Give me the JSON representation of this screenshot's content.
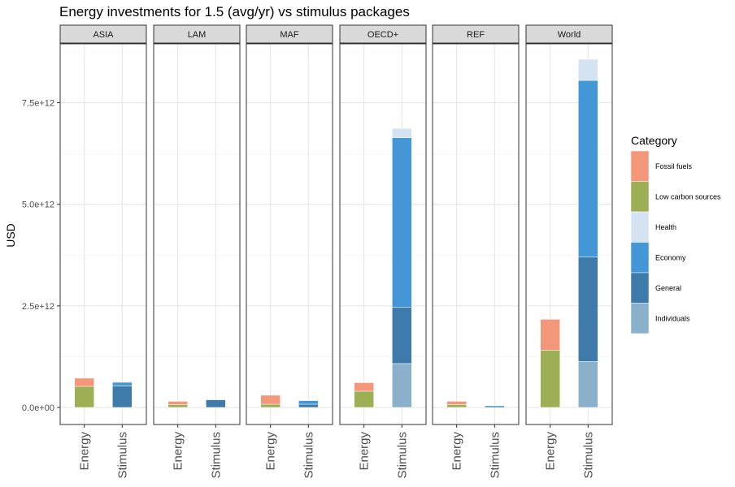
{
  "chart_data": {
    "type": "bar",
    "stacked": true,
    "title": "Energy investments for 1.5 (avg/yr) vs stimulus packages",
    "xlabel": "",
    "ylabel": "USD",
    "ylim": [
      -420000000000.0,
      8950000000000.0
    ],
    "yticks": [
      0,
      2500000000000.0,
      5000000000000.0,
      7500000000000.0
    ],
    "ytick_labels": [
      "0.0e+00",
      "2.5e+12",
      "5.0e+12",
      "7.5e+12"
    ],
    "grid": true,
    "legend_position": "right",
    "legend_title": "Category",
    "categories": [
      "Energy",
      "Stimulus"
    ],
    "series_meta": [
      {
        "name": "Fossil fuels",
        "color": "#F4967A"
      },
      {
        "name": "Low carbon sources",
        "color": "#9DAF55"
      },
      {
        "name": "Health",
        "color": "#D3E3F2"
      },
      {
        "name": "Economy",
        "color": "#4397D6"
      },
      {
        "name": "General",
        "color": "#3E7BAA"
      },
      {
        "name": "Individuals",
        "color": "#8BB0CC"
      }
    ],
    "stack_order": [
      "Individuals",
      "General",
      "Economy",
      "Health",
      "Low carbon sources",
      "Fossil fuels"
    ],
    "panels": [
      {
        "name": "ASIA",
        "bars": {
          "Energy": {
            "Low carbon sources": 520000000000.0,
            "Fossil fuels": 200000000000.0
          },
          "Stimulus": {
            "Individuals": 0,
            "General": 530000000000.0,
            "Economy": 90000000000.0,
            "Health": 20000000000.0
          }
        }
      },
      {
        "name": "LAM",
        "bars": {
          "Energy": {
            "Low carbon sources": 70000000000.0,
            "Fossil fuels": 80000000000.0
          },
          "Stimulus": {
            "Individuals": 0,
            "General": 190000000000.0,
            "Economy": 10000000000.0,
            "Health": 0
          }
        }
      },
      {
        "name": "MAF",
        "bars": {
          "Energy": {
            "Low carbon sources": 80000000000.0,
            "Fossil fuels": 220000000000.0
          },
          "Stimulus": {
            "Individuals": 0,
            "General": 80000000000.0,
            "Economy": 90000000000.0,
            "Health": 10000000000.0
          }
        }
      },
      {
        "name": "OECD+",
        "bars": {
          "Energy": {
            "Low carbon sources": 400000000000.0,
            "Fossil fuels": 210000000000.0
          },
          "Stimulus": {
            "Individuals": 1080000000000.0,
            "General": 1390000000000.0,
            "Economy": 4170000000000.0,
            "Health": 230000000000.0
          }
        }
      },
      {
        "name": "REF",
        "bars": {
          "Energy": {
            "Low carbon sources": 70000000000.0,
            "Fossil fuels": 80000000000.0
          },
          "Stimulus": {
            "Individuals": 0,
            "General": 40000000000.0,
            "Economy": 10000000000.0,
            "Health": 0
          }
        }
      },
      {
        "name": "World",
        "bars": {
          "Energy": {
            "Low carbon sources": 1410000000000.0,
            "Fossil fuels": 760000000000.0
          },
          "Stimulus": {
            "Individuals": 1130000000000.0,
            "General": 2570000000000.0,
            "Economy": 4350000000000.0,
            "Health": 520000000000.0
          }
        }
      }
    ]
  }
}
